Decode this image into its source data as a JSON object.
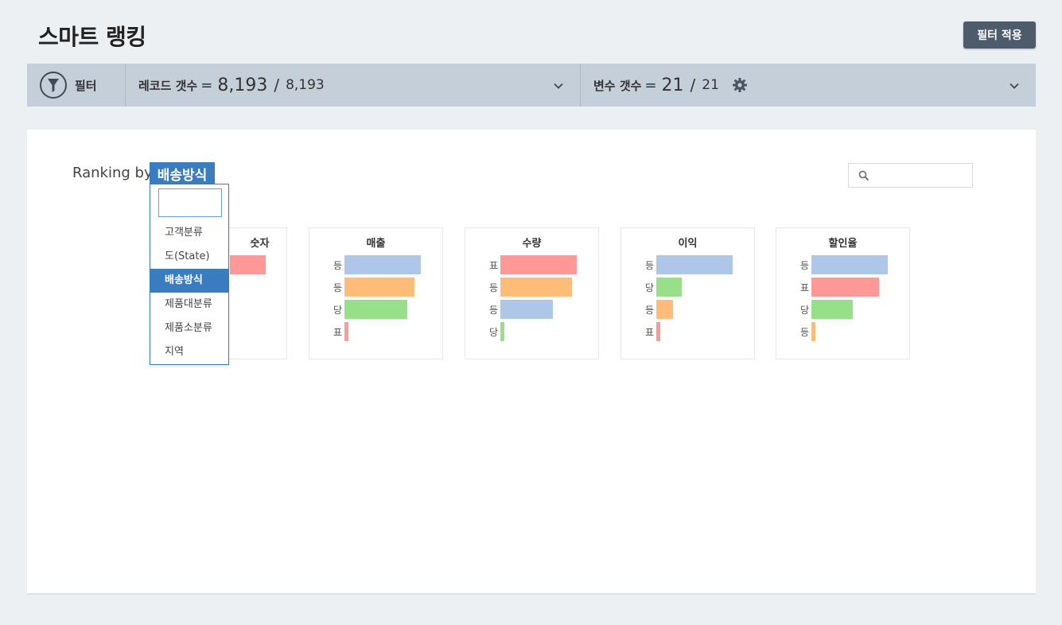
{
  "header": {
    "title": "스마트 랭킹",
    "apply_button": "필터 적용"
  },
  "filterbar": {
    "filter_label": "필터",
    "records_label": "레코드 갯수",
    "records_eq": "=",
    "records_filtered": "8,193",
    "records_slash": "/",
    "records_total": "8,193",
    "vars_label": "변수 갯수",
    "vars_eq": "=",
    "vars_filtered": "21",
    "vars_slash": "/",
    "vars_total": "21"
  },
  "ranking": {
    "label": "Ranking by",
    "selected": "배송방식"
  },
  "search": {
    "placeholder": ""
  },
  "dropdown": {
    "search_value": "",
    "options": [
      "고객분류",
      "도(State)",
      "배송방식",
      "제품대분류",
      "제품소분류",
      "지역"
    ],
    "selected_index": 2
  },
  "colors": {
    "blue": "#aec7e8",
    "orange": "#ffbb78",
    "green": "#98df8a",
    "red": "#ff9896",
    "accent": "#3a7cc0"
  },
  "chart_data": [
    {
      "type": "bar",
      "title": "숫자",
      "categories": [
        "",
        "",
        "",
        ""
      ],
      "values": [
        0.47,
        null,
        null,
        null
      ],
      "colors": [
        "red",
        "",
        "",
        ""
      ]
    },
    {
      "type": "bar",
      "title": "매출",
      "categories": [
        "등",
        "등",
        "당",
        "표"
      ],
      "values": [
        1.0,
        0.92,
        0.82,
        0.05
      ],
      "colors": [
        "blue",
        "orange",
        "green",
        "red"
      ]
    },
    {
      "type": "bar",
      "title": "수량",
      "categories": [
        "표",
        "등",
        "등",
        "당"
      ],
      "values": [
        1.0,
        0.94,
        0.69,
        0.05
      ],
      "colors": [
        "red",
        "orange",
        "blue",
        "green"
      ]
    },
    {
      "type": "bar",
      "title": "이익",
      "categories": [
        "등",
        "당",
        "등",
        "표"
      ],
      "values": [
        1.0,
        0.33,
        0.22,
        0.05
      ],
      "colors": [
        "blue",
        "green",
        "orange",
        "red"
      ]
    },
    {
      "type": "bar",
      "title": "할인율",
      "categories": [
        "등",
        "표",
        "당",
        "등"
      ],
      "values": [
        1.0,
        0.89,
        0.54,
        0.05
      ],
      "colors": [
        "blue",
        "red",
        "green",
        "orange"
      ]
    }
  ]
}
